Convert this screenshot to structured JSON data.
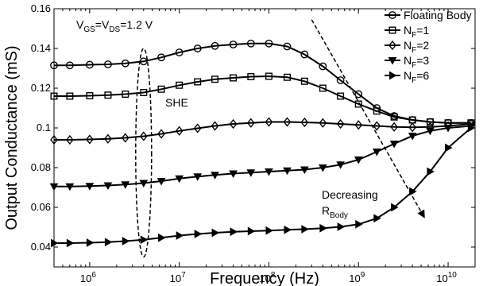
{
  "chart_data": {
    "type": "line",
    "xlabel": "Frequency (Hz)",
    "ylabel": "Output Conductance (mS)",
    "xscale": "log",
    "xlim": [
      400000,
      20000000000
    ],
    "ylim": [
      0.03,
      0.16
    ],
    "grid": false,
    "legend_position": "top-right",
    "y_ticks": [
      "0.04",
      "0.06",
      "0.08",
      "0.1",
      "0.12",
      "0.14",
      "0.16"
    ],
    "x_ticks": [
      {
        "base": "10",
        "exp": "6",
        "value": 1000000
      },
      {
        "base": "10",
        "exp": "7",
        "value": 10000000
      },
      {
        "base": "10",
        "exp": "8",
        "value": 100000000
      },
      {
        "base": "10",
        "exp": "9",
        "value": 1000000000
      },
      {
        "base": "10",
        "exp": "10",
        "value": 10000000000
      }
    ],
    "series": [
      {
        "name": "Floating Body",
        "marker": "circle",
        "x": [
          400000,
          600000,
          1000000,
          1600000,
          2500000,
          4000000,
          6300000,
          10000000,
          16000000,
          25000000,
          40000000,
          63000000,
          100000000,
          160000000,
          250000000,
          400000000,
          630000000,
          1000000000,
          1600000000,
          2500000000,
          4000000000,
          6300000000,
          10000000000,
          18000000000
        ],
        "y": [
          0.1315,
          0.1315,
          0.1318,
          0.132,
          0.1325,
          0.1335,
          0.1355,
          0.138,
          0.14,
          0.1413,
          0.142,
          0.1425,
          0.1425,
          0.141,
          0.137,
          0.131,
          0.124,
          0.117,
          0.11,
          0.106,
          0.104,
          0.103,
          0.1025,
          0.1025
        ]
      },
      {
        "name": "N_F=1",
        "marker": "square",
        "x": [
          400000,
          600000,
          1000000,
          1600000,
          2500000,
          4000000,
          6300000,
          10000000,
          16000000,
          25000000,
          40000000,
          63000000,
          100000000,
          160000000,
          250000000,
          400000000,
          630000000,
          1000000000,
          1600000000,
          2500000000,
          4000000000,
          6300000000,
          10000000000,
          18000000000
        ],
        "y": [
          0.116,
          0.116,
          0.1162,
          0.1165,
          0.117,
          0.1178,
          0.1195,
          0.1215,
          0.1232,
          0.1245,
          0.1252,
          0.1258,
          0.126,
          0.1255,
          0.1235,
          0.12,
          0.116,
          0.112,
          0.1085,
          0.1055,
          0.104,
          0.103,
          0.1025,
          0.1025
        ]
      },
      {
        "name": "N_F=2",
        "marker": "diamond",
        "x": [
          400000,
          600000,
          1000000,
          1600000,
          2500000,
          4000000,
          6300000,
          10000000,
          16000000,
          25000000,
          40000000,
          63000000,
          100000000,
          160000000,
          250000000,
          400000000,
          630000000,
          1000000000,
          1600000000,
          2500000000,
          4000000000,
          6300000000,
          10000000000,
          18000000000
        ],
        "y": [
          0.094,
          0.094,
          0.0942,
          0.0945,
          0.095,
          0.0958,
          0.097,
          0.0985,
          0.0998,
          0.101,
          0.102,
          0.1025,
          0.103,
          0.103,
          0.1028,
          0.1025,
          0.102,
          0.1015,
          0.101,
          0.1005,
          0.1003,
          0.1005,
          0.101,
          0.102
        ]
      },
      {
        "name": "N_F=3",
        "marker": "triangle-down",
        "x": [
          400000,
          600000,
          1000000,
          1600000,
          2500000,
          4000000,
          6300000,
          10000000,
          16000000,
          25000000,
          40000000,
          63000000,
          100000000,
          160000000,
          250000000,
          400000000,
          630000000,
          1000000000,
          1600000000,
          2500000000,
          4000000000,
          6300000000,
          10000000000,
          18000000000
        ],
        "y": [
          0.0705,
          0.0705,
          0.0707,
          0.071,
          0.0715,
          0.0722,
          0.0732,
          0.0745,
          0.0755,
          0.0763,
          0.077,
          0.0775,
          0.078,
          0.0785,
          0.079,
          0.08,
          0.0815,
          0.084,
          0.088,
          0.092,
          0.096,
          0.0985,
          0.1,
          0.101
        ]
      },
      {
        "name": "N_F=6",
        "marker": "triangle-right",
        "x": [
          400000,
          600000,
          1000000,
          1600000,
          2500000,
          4000000,
          6300000,
          10000000,
          16000000,
          25000000,
          40000000,
          63000000,
          100000000,
          160000000,
          250000000,
          400000000,
          630000000,
          1000000000,
          1600000000,
          2500000000,
          4000000000,
          6300000000,
          10000000000,
          18000000000
        ],
        "y": [
          0.042,
          0.042,
          0.0422,
          0.0425,
          0.043,
          0.0437,
          0.0447,
          0.0458,
          0.0466,
          0.0472,
          0.0477,
          0.048,
          0.0483,
          0.0487,
          0.049,
          0.0495,
          0.0502,
          0.0515,
          0.0545,
          0.06,
          0.068,
          0.078,
          0.09,
          0.1
        ]
      }
    ],
    "annotations": {
      "bias_label": {
        "parts": [
          [
            "V",
            "n"
          ],
          [
            "GS",
            "sub"
          ],
          [
            "=V",
            "n"
          ],
          [
            "DS",
            "sub"
          ],
          [
            "=1.2 V",
            "n"
          ]
        ]
      },
      "she_label": "SHE",
      "decreasing_label": "Decreasing",
      "rbody_label": {
        "parts": [
          [
            "R",
            "n"
          ],
          [
            "Body",
            "sub"
          ]
        ]
      }
    }
  }
}
